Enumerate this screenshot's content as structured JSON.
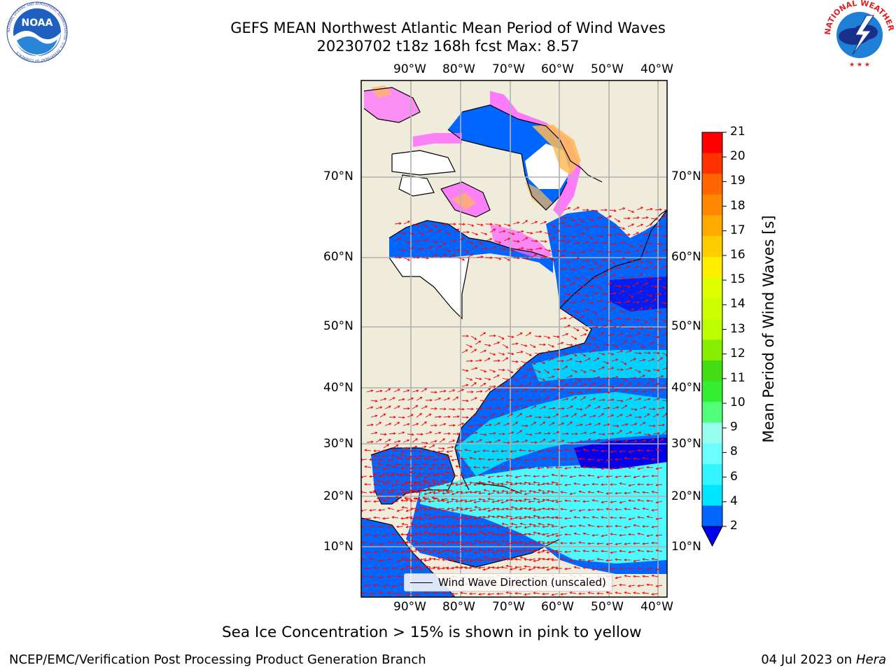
{
  "title": {
    "line1": "GEFS MEAN Northwest Atlantic Mean Period of Wind Waves",
    "line2": "20230702 t18z 168h fcst   Max: 8.57"
  },
  "logos": {
    "left": "noaa-logo",
    "left_text": "NOAA",
    "left_ring_text": "NATIONAL OCEANIC AND ATMOSPHERIC ADMINISTRATION · U.S. DEPARTMENT OF COMMERCE",
    "right": "national-weather-service-logo",
    "right_ring_text": "NATIONAL WEATHER SERVICE"
  },
  "map": {
    "lon_labels": [
      "90°W",
      "80°W",
      "70°W",
      "60°W",
      "50°W",
      "40°W"
    ],
    "lat_labels": [
      "70°N",
      "60°N",
      "50°N",
      "40°N",
      "30°N",
      "20°N",
      "10°N"
    ],
    "legend_label": "Wind Wave Direction (unscaled)"
  },
  "colorbar": {
    "label": "Mean Period of Wind Waves [s]",
    "ticks": [
      "2",
      "4",
      "6",
      "8",
      "9",
      "10",
      "11",
      "12",
      "13",
      "14",
      "15",
      "16",
      "17",
      "18",
      "19",
      "20",
      "21"
    ],
    "colors": [
      "#0066ff",
      "#00e5ff",
      "#33f5ff",
      "#6bffff",
      "#99ffee",
      "#52ff7a",
      "#33ee33",
      "#44dd11",
      "#88ee00",
      "#bbff00",
      "#ccff00",
      "#ddff00",
      "#ffee00",
      "#ffcc00",
      "#ffaa00",
      "#ff8800",
      "#ff6600",
      "#ff3300",
      "#ff0000"
    ],
    "under_color": "#0000ee"
  },
  "colors": {
    "land": "#efecdc",
    "ocean_low": "#0066ff",
    "ocean_deep": "#0000ee",
    "ocean_mid": "#00e5ff",
    "ocean_high": "#4cfbff",
    "ice_pink": "#ff66ff",
    "ice_orange": "#ffbb55",
    "arrow": "#ff0000",
    "grid": "#b0b0b0"
  },
  "caption": "Sea Ice Concentration > 15% is shown in pink to yellow",
  "footer": {
    "left": "NCEP/EMC/Verification Post Processing Product Generation Branch",
    "right_date": "04 Jul 2023 on",
    "right_host": "Hera"
  }
}
